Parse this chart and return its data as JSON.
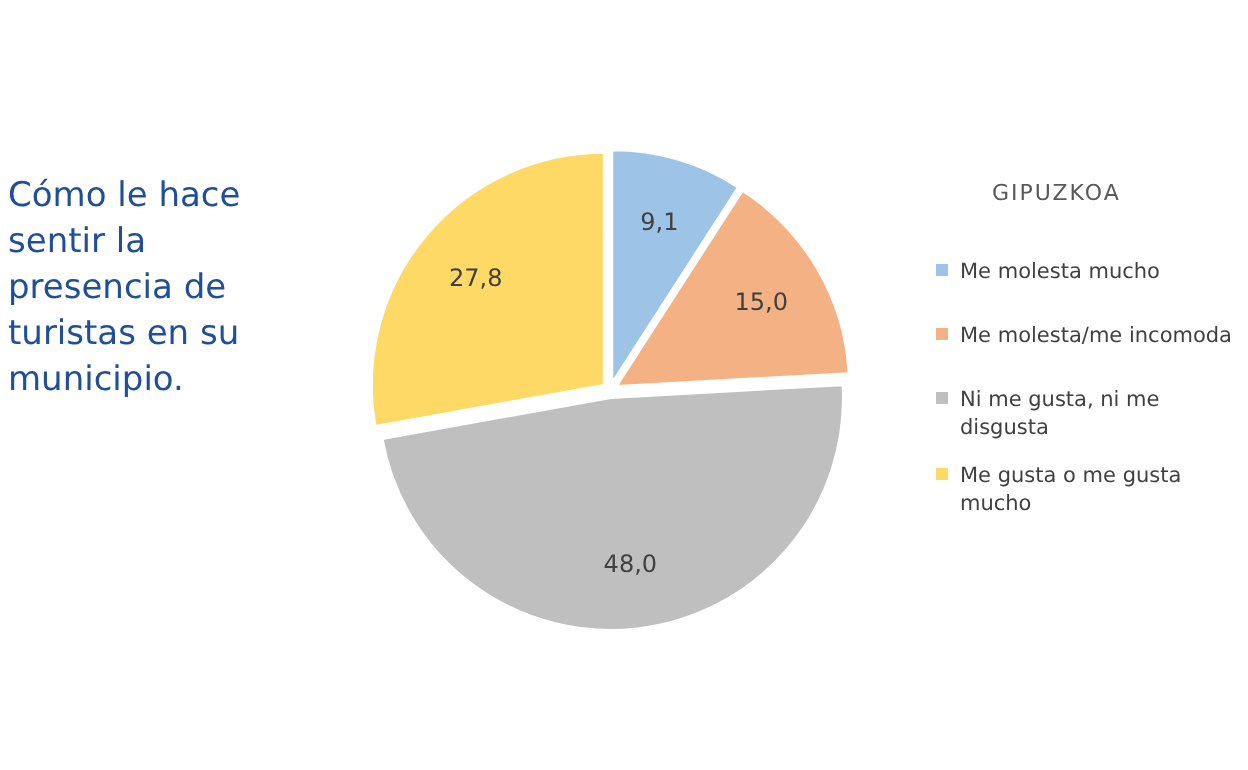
{
  "chart_data": {
    "type": "pie",
    "title": "Cómo le hace sentir la presencia de turistas en su municipio.",
    "legend_title": "GIPUZKOA",
    "categories": [
      "Me molesta mucho",
      "Me molesta/me incomoda",
      "Ni me gusta, ni me disgusta",
      "Me gusta o me gusta mucho"
    ],
    "values": [
      9.1,
      15.0,
      48.0,
      27.8
    ],
    "value_labels": [
      "9,1",
      "15,0",
      "48,0",
      "27,8"
    ],
    "colors": [
      "#9dc3e6",
      "#f4b183",
      "#bfbfbf",
      "#ffd966"
    ],
    "legend": "right"
  }
}
